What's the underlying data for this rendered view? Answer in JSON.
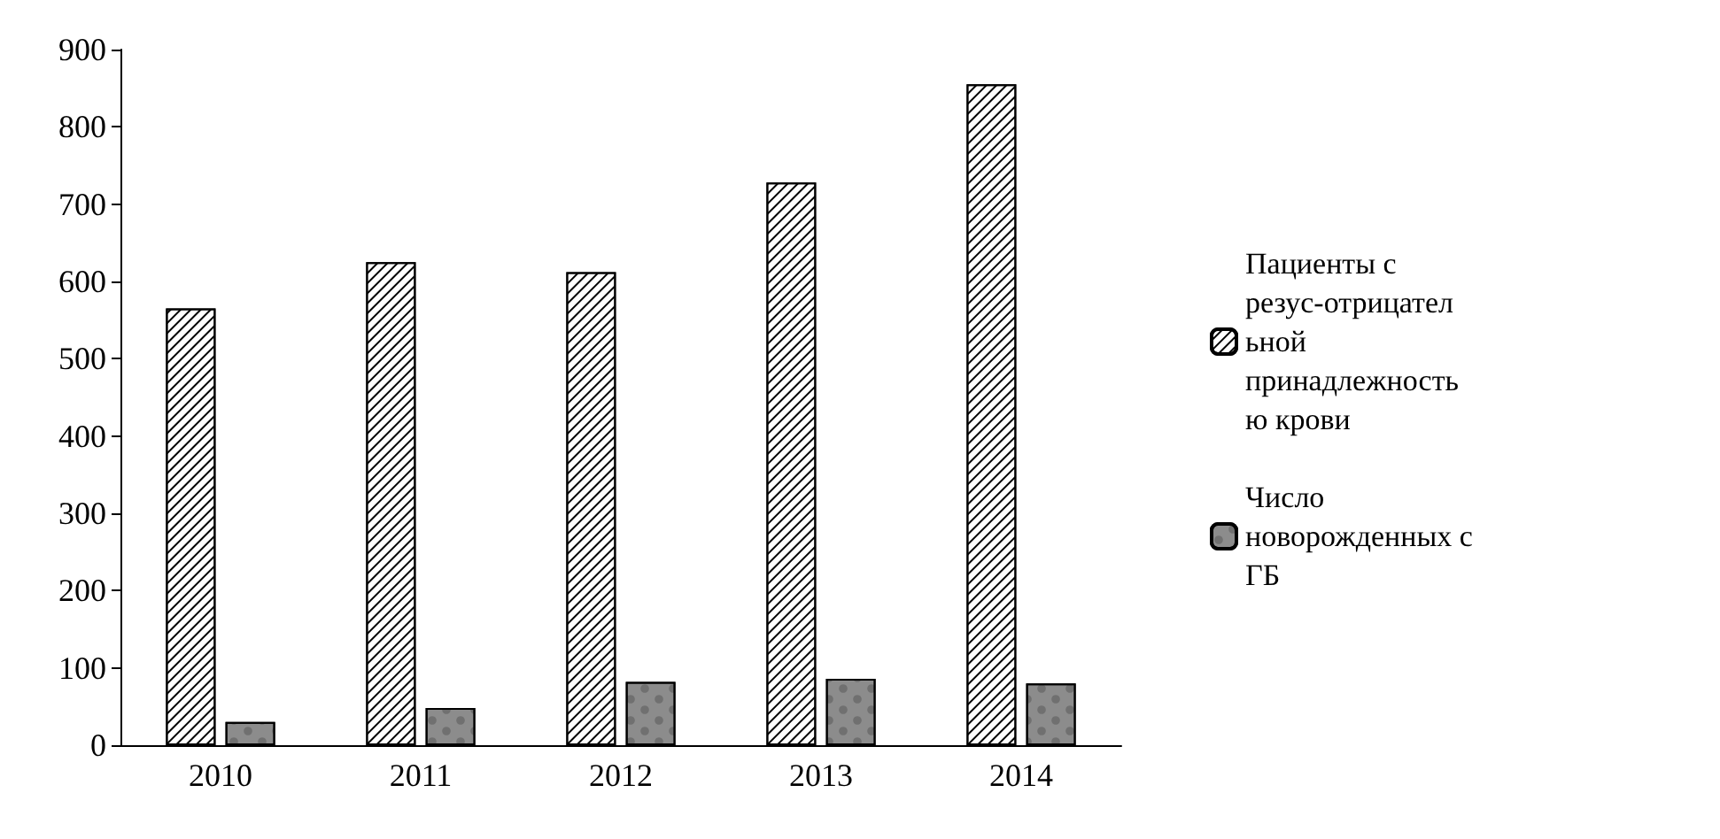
{
  "chart_data": {
    "type": "bar",
    "categories": [
      "2010",
      "2011",
      "2012",
      "2013",
      "2014"
    ],
    "series": [
      {
        "name": "Пациенты с резус-отрицательной принадлежностью крови",
        "color": "#ffffff",
        "values": [
          565,
          625,
          612,
          728,
          855
        ]
      },
      {
        "name": "Число новорожденных с ГБ",
        "color": "#8c8c8c",
        "values": [
          30,
          48,
          82,
          86,
          80
        ]
      }
    ],
    "ylim": [
      0,
      900
    ],
    "yticks": [
      0,
      100,
      200,
      300,
      400,
      500,
      600,
      700,
      800,
      900
    ],
    "grid": false,
    "legend": "right"
  }
}
